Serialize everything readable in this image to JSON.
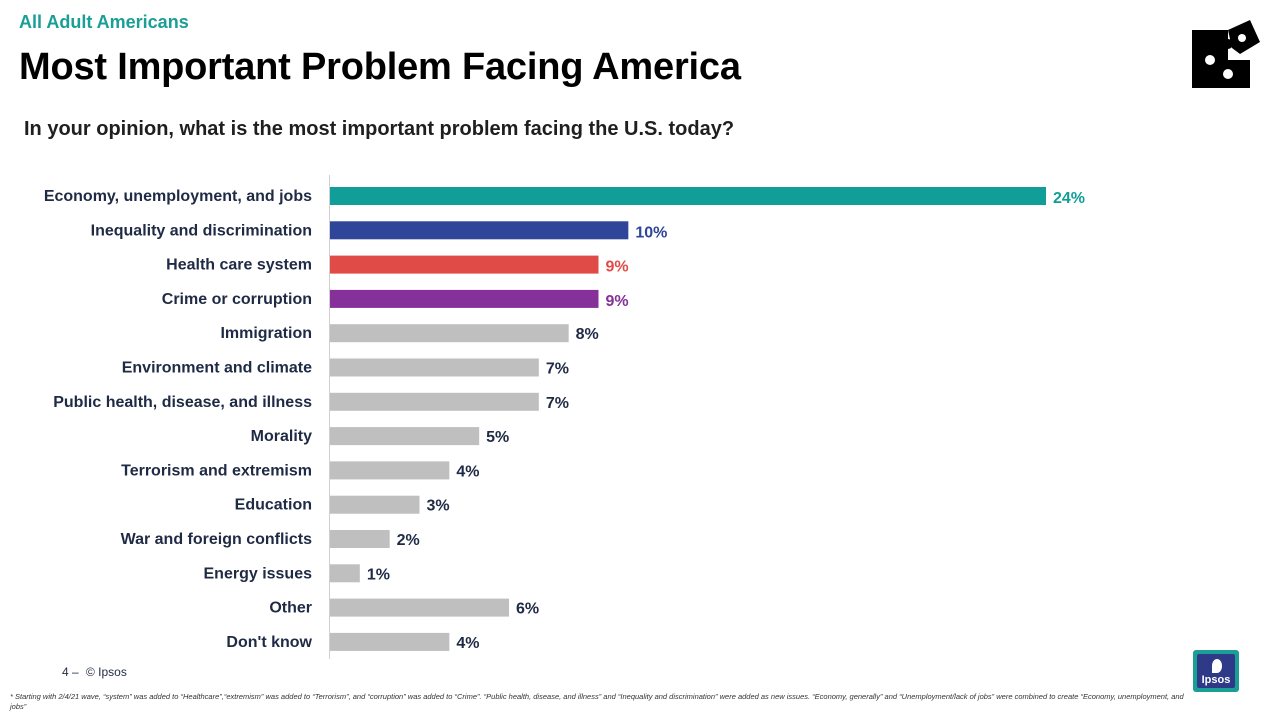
{
  "header": {
    "eyebrow": "All Adult Americans",
    "title": "Most Important Problem Facing America",
    "question": "In your opinion, what is the most important problem facing the U.S. today?"
  },
  "colors": {
    "teal": "#119e98",
    "navy": "#2e4599",
    "red": "#e04b47",
    "purple": "#86309a",
    "gray": "#bfbfbf",
    "label_dark": "#1f2a44"
  },
  "chart_data": {
    "type": "bar",
    "orientation": "horizontal",
    "categories": [
      "Economy, unemployment, and jobs",
      "Inequality and discrimination",
      "Health care system",
      "Crime or corruption",
      "Immigration",
      "Environment and climate",
      "Public health, disease, and illness",
      "Morality",
      "Terrorism and extremism",
      "Education",
      "War and foreign conflicts",
      "Energy issues",
      "Other",
      "Don't know"
    ],
    "values": [
      24,
      10,
      9,
      9,
      8,
      7,
      7,
      5,
      4,
      3,
      2,
      1,
      6,
      4
    ],
    "value_labels": [
      "24%",
      "10%",
      "9%",
      "9%",
      "8%",
      "7%",
      "7%",
      "5%",
      "4%",
      "3%",
      "2%",
      "1%",
      "6%",
      "4%"
    ],
    "bar_colors": [
      "#119e98",
      "#2e4599",
      "#e04b47",
      "#86309a",
      "#bfbfbf",
      "#bfbfbf",
      "#bfbfbf",
      "#bfbfbf",
      "#bfbfbf",
      "#bfbfbf",
      "#bfbfbf",
      "#bfbfbf",
      "#bfbfbf",
      "#bfbfbf"
    ],
    "label_colors": [
      "#119e98",
      "#2e4599",
      "#e04b47",
      "#86309a",
      "#1f2a44",
      "#1f2a44",
      "#1f2a44",
      "#1f2a44",
      "#1f2a44",
      "#1f2a44",
      "#1f2a44",
      "#1f2a44",
      "#1f2a44",
      "#1f2a44"
    ],
    "xlim": [
      0,
      25
    ],
    "grid": false,
    "title": "",
    "xlabel": "",
    "ylabel": ""
  },
  "footer": {
    "page_number": "4 –",
    "copyright": "© Ipsos",
    "footnote": "* Starting with 2/4/21 wave, “system” was added to “Healthcare”,“extremism” was added to “Terrorism”, and “corruption” was added to “Crime”. “Public health, disease, and illness” and “Inequality and discrimination” were added as new issues. “Economy, generally” and “Unemployment/lack of jobs” were combined to create “Economy, unemployment, and jobs”",
    "logo_text": "Ipsos"
  }
}
